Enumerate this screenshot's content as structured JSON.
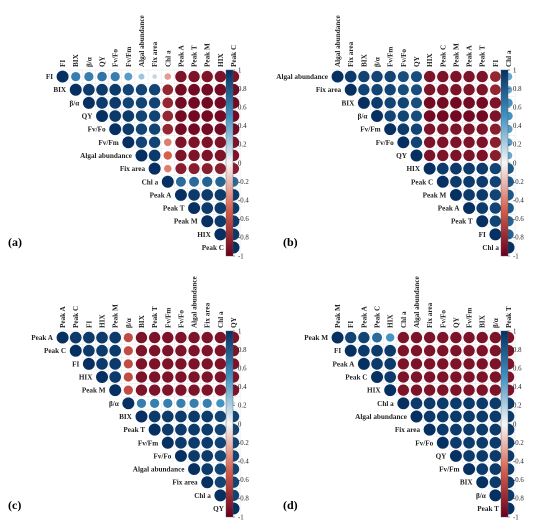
{
  "colorbar": {
    "ticks": [
      "1",
      "0.8",
      "0.6",
      "0.4",
      "0.2",
      "0",
      "-0.2",
      "-0.4",
      "-0.6",
      "-0.8",
      "-1"
    ],
    "colors": {
      "neg_strong": "#67001f",
      "neg_mid": "#d6604d",
      "neutral": "#f7f7f7",
      "pos_mid": "#4393c3",
      "pos_strong": "#053061"
    }
  },
  "chart_data": [
    {
      "type": "heatmap",
      "panel_label": "(a)",
      "variables": [
        "FI",
        "BIX",
        "β/α",
        "QY",
        "Fv/Fo",
        "Fv/Fm",
        "Algal abundance",
        "Fix area",
        "Chl a",
        "Peak A",
        "Peak T",
        "Peak M",
        "HIX",
        "Peak C"
      ],
      "column_labels": [
        "FI",
        "BIX",
        "β/α",
        "QY",
        "Fv/Fo",
        "Fv/Fm",
        "Algal abundance",
        "Fix area",
        "Chl a",
        "Peak A",
        "Peak T",
        "Peak M",
        "HIX",
        "Peak C"
      ],
      "row_labels": [
        "FI",
        "BIX",
        "β/α",
        "QY",
        "Fv/Fo",
        "Fv/Fm",
        "Algal abundance",
        "Fix area",
        "Chl a",
        "Peak A",
        "Peak T",
        "Peak M",
        "HIX",
        "Peak C"
      ],
      "upper_triangle": [
        [
          1,
          0.6,
          0.6,
          0.65,
          0.6,
          0.45,
          0.25,
          0.15,
          -0.3,
          -0.9,
          -0.9,
          -0.9,
          -0.9,
          -0.9
        ],
        [
          1,
          0.95,
          0.95,
          0.95,
          0.9,
          0.9,
          0.9,
          -0.8,
          -0.95,
          -0.95,
          -0.95,
          -0.95,
          -0.95
        ],
        [
          1,
          0.95,
          0.95,
          0.9,
          0.9,
          0.9,
          -0.8,
          -0.95,
          -0.95,
          -0.95,
          -0.95,
          -0.95
        ],
        [
          1,
          0.95,
          0.95,
          0.9,
          0.9,
          -0.8,
          -0.95,
          -0.95,
          -0.95,
          -0.95,
          -0.95
        ],
        [
          1,
          0.95,
          0.9,
          0.9,
          -0.8,
          -0.95,
          -0.95,
          -0.95,
          -0.95,
          -0.95
        ],
        [
          1,
          0.9,
          0.9,
          -0.4,
          -0.9,
          -0.9,
          -0.9,
          -0.9,
          -0.9
        ],
        [
          1,
          0.95,
          -0.5,
          -0.9,
          -0.9,
          -0.9,
          -0.9,
          -0.9
        ],
        [
          1,
          -0.4,
          -0.85,
          -0.85,
          -0.85,
          -0.85,
          -0.85
        ],
        [
          1,
          0.7,
          0.7,
          0.75,
          0.75,
          0.7
        ],
        [
          1,
          0.95,
          0.95,
          0.95,
          0.95
        ],
        [
          1,
          0.95,
          0.95,
          0.95
        ],
        [
          1,
          0.95,
          0.95
        ],
        [
          1,
          0.95
        ],
        [
          1
        ]
      ]
    },
    {
      "type": "heatmap",
      "panel_label": "(b)",
      "variables": [
        "Algal abundance",
        "Fix area",
        "BIX",
        "β/α",
        "Fv/Fm",
        "Fv/Fo",
        "QY",
        "HIX",
        "Peak C",
        "Peak M",
        "Peak A",
        "Peak T",
        "FI",
        "Chl a"
      ],
      "column_labels": [
        "Algal abundance",
        "Fix area",
        "BIX",
        "β/α",
        "Fv/Fm",
        "Fv/Fo",
        "QY",
        "HIX",
        "Peak C",
        "Peak M",
        "Peak A",
        "Peak T",
        "FI",
        "Chl a"
      ],
      "row_labels": [
        "Algal abundance",
        "Fix area",
        "BIX",
        "β/α",
        "Fv/Fm",
        "Fv/Fo",
        "QY",
        "HIX",
        "Peak C",
        "Peak M",
        "Peak A",
        "Peak T",
        "FI",
        "Chl a"
      ],
      "upper_triangle": [
        [
          1,
          0.95,
          0.9,
          0.9,
          0.9,
          0.85,
          0.85,
          -0.9,
          -0.9,
          -0.9,
          -0.9,
          -0.9,
          -0.8,
          0.4
        ],
        [
          1,
          0.9,
          0.9,
          0.9,
          0.85,
          0.85,
          -0.9,
          -0.9,
          -0.9,
          -0.9,
          -0.9,
          -0.8,
          0.4
        ],
        [
          1,
          0.95,
          0.9,
          0.9,
          0.85,
          -0.95,
          -0.95,
          -0.95,
          -0.95,
          -0.95,
          -0.9,
          0.5
        ],
        [
          1,
          0.9,
          0.9,
          0.85,
          -0.95,
          -0.95,
          -0.95,
          -0.95,
          -0.95,
          -0.9,
          0.5
        ],
        [
          1,
          0.95,
          0.9,
          -0.9,
          -0.9,
          -0.9,
          -0.9,
          -0.9,
          -0.85,
          0.45
        ],
        [
          1,
          0.9,
          -0.9,
          -0.9,
          -0.9,
          -0.9,
          -0.9,
          -0.85,
          0.45
        ],
        [
          1,
          -0.9,
          -0.9,
          -0.9,
          -0.9,
          -0.9,
          -0.85,
          0.4
        ],
        [
          1,
          0.95,
          0.95,
          0.95,
          0.95,
          0.9,
          0.8
        ],
        [
          1,
          0.95,
          0.95,
          0.95,
          0.9,
          0.8
        ],
        [
          1,
          0.95,
          0.95,
          0.9,
          0.8
        ],
        [
          1,
          0.95,
          0.9,
          0.8
        ],
        [
          1,
          0.9,
          0.75
        ],
        [
          1,
          0.75
        ],
        [
          1
        ]
      ]
    },
    {
      "type": "heatmap",
      "panel_label": "(c)",
      "variables": [
        "Peak A",
        "Peak C",
        "FI",
        "HIX",
        "Peak M",
        "β/α",
        "BIX",
        "Peak T",
        "Fv/Fm",
        "Fv/Fo",
        "Algal abundance",
        "Fix area",
        "Chl a",
        "QY"
      ],
      "column_labels": [
        "Peak A",
        "Peak C",
        "FI",
        "HIX",
        "Peak M",
        "β/α",
        "BIX",
        "Peak T",
        "Fv/Fm",
        "Fv/Fo",
        "Algal abundance",
        "Fix area",
        "Chl a",
        "QY"
      ],
      "row_labels": [
        "Peak A",
        "Peak C",
        "FI",
        "HIX",
        "Peak M",
        "β/α",
        "BIX",
        "Peak T",
        "Fv/Fm",
        "Fv/Fo",
        "Algal abundance",
        "Fix area",
        "Chl a",
        "QY"
      ],
      "upper_triangle": [
        [
          1,
          0.95,
          0.95,
          0.95,
          0.95,
          -0.6,
          -0.9,
          -0.9,
          -0.9,
          -0.9,
          -0.9,
          -0.9,
          -0.9,
          -0.9
        ],
        [
          1,
          0.95,
          0.95,
          0.95,
          -0.6,
          -0.9,
          -0.9,
          -0.9,
          -0.9,
          -0.9,
          -0.9,
          -0.9,
          -0.9
        ],
        [
          1,
          0.95,
          0.95,
          -0.6,
          -0.9,
          -0.9,
          -0.9,
          -0.9,
          -0.9,
          -0.9,
          -0.9,
          -0.9
        ],
        [
          1,
          0.95,
          -0.6,
          -0.9,
          -0.9,
          -0.9,
          -0.9,
          -0.9,
          -0.9,
          -0.9,
          -0.9
        ],
        [
          1,
          -0.6,
          -0.9,
          -0.9,
          -0.9,
          -0.9,
          -0.9,
          -0.9,
          -0.9,
          -0.9
        ],
        [
          1,
          0.6,
          0.6,
          0.6,
          0.6,
          0.6,
          0.6,
          0.5,
          0.1
        ],
        [
          1,
          0.95,
          0.95,
          0.95,
          0.95,
          0.95,
          0.9,
          0.9
        ],
        [
          1,
          0.95,
          0.95,
          0.95,
          0.95,
          0.9,
          0.9
        ],
        [
          1,
          0.95,
          0.95,
          0.95,
          0.9,
          0.9
        ],
        [
          1,
          0.95,
          0.95,
          0.9,
          0.9
        ],
        [
          1,
          0.95,
          0.9,
          0.9
        ],
        [
          1,
          0.9,
          0.9
        ],
        [
          1,
          0.9
        ],
        [
          1
        ]
      ]
    },
    {
      "type": "heatmap",
      "panel_label": "(d)",
      "variables": [
        "Peak M",
        "FI",
        "Peak A",
        "Peak C",
        "HIX",
        "Chl a",
        "Algal abundance",
        "Fix area",
        "Fv/Fo",
        "QY",
        "Fv/Fm",
        "BIX",
        "β/α",
        "Peak T"
      ],
      "column_labels": [
        "Peak M",
        "FI",
        "Peak A",
        "Peak C",
        "HIX",
        "Chl a",
        "Algal abundance",
        "Fix area",
        "Fv/Fo",
        "QY",
        "Fv/Fm",
        "BIX",
        "β/α",
        "Peak T"
      ],
      "row_labels": [
        "Peak M",
        "FI",
        "Peak A",
        "Peak C",
        "HIX",
        "Chl a",
        "Algal abundance",
        "Fix area",
        "Fv/Fo",
        "QY",
        "Fv/Fm",
        "BIX",
        "β/α",
        "Peak T"
      ],
      "upper_triangle": [
        [
          1,
          0.9,
          0.9,
          0.7,
          0.5,
          -0.9,
          -0.9,
          -0.9,
          -0.9,
          -0.9,
          -0.9,
          -0.9,
          -0.9,
          -0.9
        ],
        [
          1,
          0.95,
          0.95,
          0.95,
          -0.9,
          -0.9,
          -0.9,
          -0.9,
          -0.9,
          -0.9,
          -0.9,
          -0.9,
          -0.9
        ],
        [
          1,
          0.95,
          0.95,
          -0.9,
          -0.9,
          -0.9,
          -0.9,
          -0.9,
          -0.9,
          -0.9,
          -0.9,
          -0.9
        ],
        [
          1,
          0.95,
          -0.9,
          -0.9,
          -0.9,
          -0.9,
          -0.9,
          -0.9,
          -0.9,
          -0.9,
          -0.9
        ],
        [
          1,
          -0.9,
          -0.9,
          -0.9,
          -0.9,
          -0.9,
          -0.9,
          -0.9,
          -0.9,
          -0.9
        ],
        [
          1,
          0.95,
          0.95,
          0.95,
          0.95,
          0.95,
          0.95,
          0.95,
          0.95
        ],
        [
          1,
          0.95,
          0.95,
          0.95,
          0.95,
          0.95,
          0.95,
          0.95
        ],
        [
          1,
          0.95,
          0.95,
          0.95,
          0.95,
          0.95,
          0.95
        ],
        [
          1,
          0.95,
          0.95,
          0.95,
          0.95,
          0.95
        ],
        [
          1,
          0.95,
          0.95,
          0.95,
          0.95
        ],
        [
          1,
          0.95,
          0.95,
          0.95
        ],
        [
          1,
          0.95,
          0.95
        ],
        [
          1,
          0.95
        ],
        [
          1
        ]
      ]
    }
  ]
}
